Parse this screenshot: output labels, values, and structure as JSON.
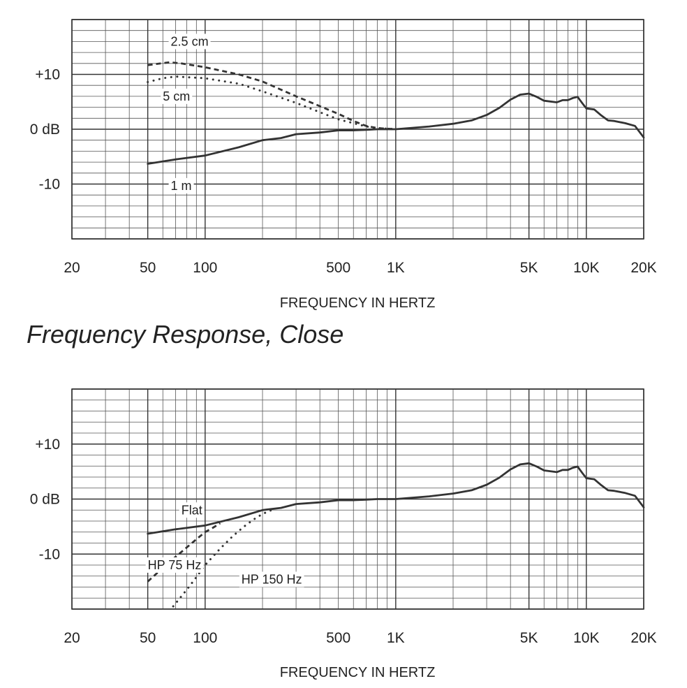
{
  "page_title": "Frequency Response, Close",
  "chart_data": [
    {
      "type": "line",
      "xscale": "log",
      "xlim": [
        20,
        20000
      ],
      "ylim": [
        -20,
        20
      ],
      "x_ticks": [
        20,
        50,
        100,
        500,
        1000,
        5000,
        10000,
        20000
      ],
      "x_tick_labels": [
        "20",
        "50",
        "100",
        "500",
        "1K",
        "5K",
        "10K",
        "20K"
      ],
      "y_ticks": [
        10,
        0,
        -10
      ],
      "y_tick_labels": [
        "+10",
        "0 dB",
        "-10"
      ],
      "xlabel": "FREQUENCY IN HERTZ",
      "ylabel": "",
      "grid": true,
      "series": [
        {
          "name": "1 m",
          "style": "solid",
          "x": [
            50,
            70,
            100,
            150,
            200,
            250,
            300,
            400,
            500,
            600,
            700,
            800,
            1000,
            1500,
            2000,
            2500,
            3000,
            3500,
            4000,
            4500,
            5000,
            5500,
            6000,
            7000,
            7500,
            8000,
            8500,
            9000,
            9500,
            10000,
            11000,
            12000,
            13000,
            14000,
            16000,
            18000,
            20000
          ],
          "y": [
            -6.3,
            -5.5,
            -4.8,
            -3.3,
            -2,
            -1.6,
            -0.9,
            -0.6,
            -0.2,
            -0.2,
            -0.1,
            0,
            0,
            0.5,
            1,
            1.6,
            2.6,
            3.9,
            5.4,
            6.3,
            6.5,
            5.9,
            5.2,
            4.9,
            5.3,
            5.3,
            5.7,
            5.9,
            4.8,
            3.8,
            3.6,
            2.5,
            1.6,
            1.5,
            1.1,
            0.6,
            -1.5
          ]
        },
        {
          "name": "2.5 cm",
          "style": "dashed",
          "x": [
            50,
            65,
            75,
            100,
            150,
            200,
            300,
            400,
            500,
            600,
            700,
            800,
            1000
          ],
          "y": [
            11.7,
            12.2,
            12.0,
            11.3,
            10.0,
            8.7,
            6.0,
            4.2,
            2.8,
            1.5,
            0.6,
            0.2,
            0.0
          ]
        },
        {
          "name": "5 cm",
          "style": "dotted",
          "x": [
            50,
            60,
            70,
            100,
            150,
            200,
            300,
            400,
            500,
            600,
            700,
            800,
            1000
          ],
          "y": [
            8.6,
            9.3,
            9.6,
            9.3,
            8.3,
            6.9,
            4.8,
            3.1,
            1.8,
            1.1,
            0.5,
            0.2,
            0.0
          ]
        }
      ],
      "annotations": [
        {
          "text": "2.5 cm",
          "x": 66,
          "y": 16
        },
        {
          "text": "5 cm",
          "x": 60,
          "y": 6
        },
        {
          "text": "1 m",
          "x": 66,
          "y": -10.3
        }
      ]
    },
    {
      "type": "line",
      "xscale": "log",
      "xlim": [
        20,
        20000
      ],
      "ylim": [
        -20,
        20
      ],
      "x_ticks": [
        20,
        50,
        100,
        500,
        1000,
        5000,
        10000,
        20000
      ],
      "x_tick_labels": [
        "20",
        "50",
        "100",
        "500",
        "1K",
        "5K",
        "10K",
        "20K"
      ],
      "y_ticks": [
        10,
        0,
        -10
      ],
      "y_tick_labels": [
        "+10",
        "0 dB",
        "-10"
      ],
      "xlabel": "FREQUENCY IN HERTZ",
      "ylabel": "",
      "grid": true,
      "series": [
        {
          "name": "Flat",
          "style": "solid",
          "x": [
            50,
            70,
            100,
            150,
            200,
            250,
            300,
            400,
            500,
            600,
            700,
            800,
            1000,
            1500,
            2000,
            2500,
            3000,
            3500,
            4000,
            4500,
            5000,
            5500,
            6000,
            7000,
            7500,
            8000,
            8500,
            9000,
            9500,
            10000,
            11000,
            12000,
            13000,
            14000,
            16000,
            18000,
            20000
          ],
          "y": [
            -6.3,
            -5.5,
            -4.8,
            -3.3,
            -2,
            -1.6,
            -0.9,
            -0.6,
            -0.2,
            -0.2,
            -0.1,
            0,
            0,
            0.5,
            1,
            1.6,
            2.6,
            3.9,
            5.4,
            6.3,
            6.5,
            5.9,
            5.2,
            4.9,
            5.3,
            5.3,
            5.7,
            5.9,
            4.8,
            3.8,
            3.6,
            2.5,
            1.6,
            1.5,
            1.1,
            0.6,
            -1.5
          ]
        },
        {
          "name": "HP 75 Hz",
          "style": "dashed",
          "x": [
            50,
            60,
            70,
            80,
            90,
            100,
            110,
            120
          ],
          "y": [
            -15,
            -12.5,
            -10.5,
            -8.8,
            -7.3,
            -6.0,
            -5.2,
            -4.4
          ]
        },
        {
          "name": "HP 150 Hz",
          "style": "dotted",
          "x": [
            68,
            80,
            90,
            100,
            120,
            140,
            160,
            180,
            200,
            230
          ],
          "y": [
            -19.5,
            -16.5,
            -14.2,
            -12.0,
            -9.0,
            -6.7,
            -5.0,
            -3.7,
            -2.7,
            -1.8
          ]
        }
      ],
      "annotations": [
        {
          "text": "Flat",
          "x": 75,
          "y": -2
        },
        {
          "text": "HP 75 Hz",
          "x": 50,
          "y": -12
        },
        {
          "text": "HP 150 Hz",
          "x": 155,
          "y": -14.6
        }
      ]
    }
  ]
}
